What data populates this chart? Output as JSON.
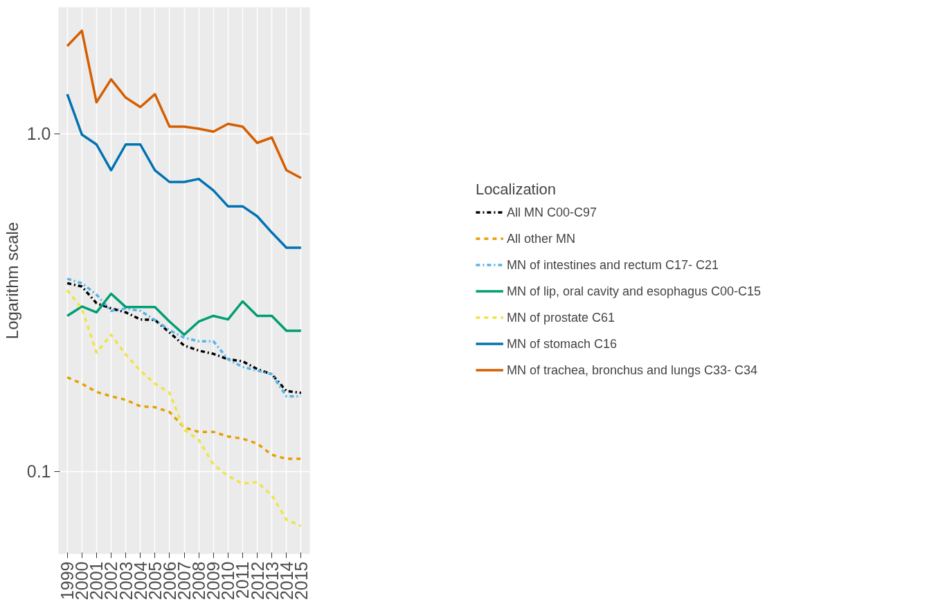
{
  "chart_data": {
    "type": "line",
    "ylabel": "Logarithm scale",
    "legend_title": "Localization",
    "categories": [
      "1999",
      "2000",
      "2001",
      "2002",
      "2003",
      "2004",
      "2005",
      "2006",
      "2007",
      "2008",
      "2009",
      "2010",
      "2011",
      "2012",
      "2013",
      "2014",
      "2015"
    ],
    "log": "y",
    "ylim": [
      0.057,
      2.37
    ],
    "yticks": [
      {
        "value": 1,
        "label": "1.0"
      },
      0.1
    ],
    "grid": true,
    "legend": "right",
    "series": [
      {
        "name": "All MN C00-C97",
        "color": "#000000",
        "line_style": "dashdot",
        "values": [
          0.361,
          0.353,
          0.315,
          0.304,
          0.296,
          0.282,
          0.281,
          0.258,
          0.236,
          0.228,
          0.223,
          0.215,
          0.212,
          0.201,
          0.194,
          0.173,
          0.171
        ]
      },
      {
        "name": "All other MN",
        "color": "#e69f00",
        "line_style": "dashed",
        "values": [
          0.19,
          0.182,
          0.172,
          0.167,
          0.163,
          0.156,
          0.155,
          0.15,
          0.135,
          0.131,
          0.131,
          0.127,
          0.125,
          0.121,
          0.112,
          0.109,
          0.109
        ]
      },
      {
        "name": "MN of intestines and rectum C17- C21",
        "color": "#56b4e9",
        "line_style": "dashdot",
        "values": [
          0.372,
          0.361,
          0.334,
          0.299,
          0.304,
          0.299,
          0.281,
          0.262,
          0.249,
          0.243,
          0.243,
          0.215,
          0.204,
          0.199,
          0.194,
          0.167,
          0.167
        ]
      },
      {
        "name": "MN of lip, oral cavity and esophagus C00-C15",
        "color": "#009e73",
        "line_style": "solid",
        "values": [
          0.289,
          0.308,
          0.296,
          0.336,
          0.307,
          0.307,
          0.307,
          0.278,
          0.254,
          0.278,
          0.289,
          0.282,
          0.319,
          0.289,
          0.289,
          0.261,
          0.261
        ]
      },
      {
        "name": "MN of prostate C61",
        "color": "#f0e442",
        "line_style": "dashed",
        "values": [
          0.344,
          0.304,
          0.225,
          0.254,
          0.222,
          0.199,
          0.182,
          0.171,
          0.133,
          0.124,
          0.105,
          0.097,
          0.092,
          0.093,
          0.085,
          0.072,
          0.069
        ]
      },
      {
        "name": "MN of stomach C16",
        "color": "#0072b2",
        "line_style": "solid",
        "values": [
          1.31,
          0.995,
          0.93,
          0.78,
          0.93,
          0.93,
          0.78,
          0.72,
          0.72,
          0.735,
          0.68,
          0.61,
          0.61,
          0.57,
          0.51,
          0.46,
          0.46
        ]
      },
      {
        "name": "MN of trachea, bronchus and lungs C33- C34",
        "color": "#d55e00",
        "line_style": "solid",
        "values": [
          1.82,
          2.02,
          1.24,
          1.45,
          1.28,
          1.2,
          1.31,
          1.05,
          1.05,
          1.035,
          1.015,
          1.07,
          1.05,
          0.94,
          0.975,
          0.78,
          0.74
        ]
      }
    ]
  }
}
